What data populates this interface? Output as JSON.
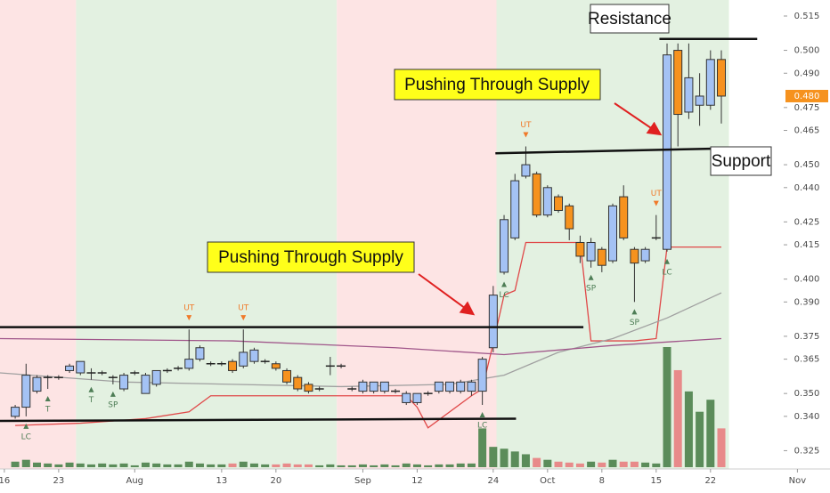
{
  "chart_data": {
    "type": "candlestick",
    "xlim": [
      -1.4,
      75
    ],
    "ylim": [
      0.317,
      0.522
    ],
    "xticks": [
      {
        "value": -1,
        "label": "16"
      },
      {
        "value": 4,
        "label": "23"
      },
      {
        "value": 11,
        "label": "Aug"
      },
      {
        "value": 19,
        "label": "13"
      },
      {
        "value": 24,
        "label": "20"
      },
      {
        "value": 32,
        "label": "Sep"
      },
      {
        "value": 37,
        "label": "12"
      },
      {
        "value": 44,
        "label": "24"
      },
      {
        "value": 49,
        "label": "Oct"
      },
      {
        "value": 54,
        "label": "8"
      },
      {
        "value": 59,
        "label": "15"
      },
      {
        "value": 64,
        "label": "22"
      },
      {
        "value": 72,
        "label": "Nov"
      }
    ],
    "yticks": [
      0.515,
      {
        "value": 0.5,
        "label": "0.500"
      },
      {
        "value": 0.49,
        "label": "0.490"
      },
      0.475,
      0.465,
      {
        "value": 0.45,
        "label": "0.450"
      },
      {
        "value": 0.44,
        "label": "0.440"
      },
      0.425,
      0.415,
      {
        "value": 0.4,
        "label": "0.400"
      },
      {
        "value": 0.39,
        "label": "0.390"
      },
      0.375,
      0.365,
      {
        "value": 0.35,
        "label": "0.350"
      },
      {
        "value": 0.34,
        "label": "0.340"
      },
      0.325
    ],
    "up_color": "#a4c2f4",
    "down_color": "#f6921e",
    "open": [
      0.34,
      0.344,
      0.351,
      0.357,
      0.357,
      0.36,
      0.359,
      0.359,
      0.359,
      0.357,
      0.352,
      0.359,
      0.35,
      0.354,
      0.36,
      0.361,
      0.361,
      0.365,
      0.363,
      0.363,
      0.364,
      0.362,
      0.364,
      0.364,
      0.363,
      0.36,
      0.357,
      0.354,
      0.352,
      0.362,
      0.362,
      0.352,
      0.351,
      0.351,
      0.351,
      0.351,
      0.346,
      0.346,
      0.35,
      0.351,
      0.351,
      0.351,
      0.351,
      0.351,
      0.37,
      0.403,
      0.418,
      0.445,
      0.446,
      0.428,
      0.436,
      0.432,
      0.416,
      0.408,
      0.413,
      0.408,
      0.436,
      0.413,
      0.408,
      0.418,
      0.413,
      0.5,
      0.473,
      0.476,
      0.476,
      0.496
    ],
    "high": [
      0.345,
      0.363,
      0.358,
      0.358,
      0.358,
      0.363,
      0.364,
      0.361,
      0.36,
      0.358,
      0.359,
      0.36,
      0.359,
      0.36,
      0.361,
      0.362,
      0.378,
      0.371,
      0.364,
      0.364,
      0.365,
      0.378,
      0.37,
      0.365,
      0.364,
      0.361,
      0.358,
      0.355,
      0.353,
      0.366,
      0.363,
      0.353,
      0.356,
      0.355,
      0.355,
      0.352,
      0.351,
      0.35,
      0.351,
      0.355,
      0.355,
      0.356,
      0.356,
      0.366,
      0.397,
      0.428,
      0.446,
      0.458,
      0.447,
      0.441,
      0.437,
      0.433,
      0.419,
      0.418,
      0.414,
      0.433,
      0.441,
      0.414,
      0.414,
      0.428,
      0.503,
      0.503,
      0.503,
      0.49,
      0.5,
      0.5
    ],
    "low": [
      0.339,
      0.34,
      0.35,
      0.352,
      0.356,
      0.359,
      0.358,
      0.356,
      0.358,
      0.354,
      0.351,
      0.358,
      0.35,
      0.353,
      0.359,
      0.36,
      0.36,
      0.364,
      0.362,
      0.362,
      0.359,
      0.361,
      0.363,
      0.363,
      0.36,
      0.354,
      0.351,
      0.35,
      0.351,
      0.358,
      0.361,
      0.351,
      0.35,
      0.35,
      0.35,
      0.35,
      0.345,
      0.345,
      0.349,
      0.35,
      0.35,
      0.35,
      0.349,
      0.345,
      0.368,
      0.402,
      0.417,
      0.444,
      0.427,
      0.427,
      0.429,
      0.417,
      0.407,
      0.405,
      0.403,
      0.407,
      0.417,
      0.39,
      0.407,
      0.417,
      0.412,
      0.458,
      0.47,
      0.467,
      0.474,
      0.468
    ],
    "close": [
      0.344,
      0.358,
      0.357,
      0.357,
      0.357,
      0.362,
      0.364,
      0.359,
      0.359,
      0.357,
      0.358,
      0.359,
      0.358,
      0.36,
      0.36,
      0.361,
      0.365,
      0.37,
      0.363,
      0.363,
      0.36,
      0.368,
      0.369,
      0.364,
      0.361,
      0.355,
      0.352,
      0.351,
      0.352,
      0.362,
      0.362,
      0.352,
      0.355,
      0.355,
      0.355,
      0.351,
      0.35,
      0.35,
      0.35,
      0.355,
      0.355,
      0.355,
      0.355,
      0.365,
      0.393,
      0.426,
      0.443,
      0.45,
      0.428,
      0.44,
      0.43,
      0.422,
      0.41,
      0.416,
      0.406,
      0.432,
      0.418,
      0.407,
      0.413,
      0.418,
      0.498,
      0.472,
      0.488,
      0.48,
      0.496,
      0.48
    ],
    "volume": [
      6,
      8,
      5,
      4,
      3,
      5,
      4,
      3,
      4,
      3,
      4,
      2,
      5,
      4,
      3,
      3,
      6,
      4,
      3,
      3,
      4,
      6,
      4,
      3,
      3,
      4,
      3,
      3,
      2,
      3,
      2,
      2,
      3,
      2,
      3,
      2,
      4,
      3,
      2,
      3,
      3,
      4,
      4,
      42,
      22,
      20,
      17,
      14,
      10,
      8,
      6,
      5,
      4,
      6,
      5,
      8,
      6,
      6,
      5,
      4,
      130,
      105,
      82,
      60,
      73,
      42
    ],
    "volume_up_color": "#5b8c5a",
    "volume_down_color": "#e88a8a",
    "zones": [
      {
        "from": -1.4,
        "to": 5.6,
        "color": "#fde4e4"
      },
      {
        "from": 5.6,
        "to": 29.6,
        "color": "#e3f1e1"
      },
      {
        "from": 29.6,
        "to": 44.3,
        "color": "#fde4e4"
      },
      {
        "from": 44.3,
        "to": 65.7,
        "color": "#e3f1e1"
      }
    ],
    "indicators": [
      {
        "color": "#e04848",
        "x": [
          0,
          6,
          12,
          16,
          18,
          36,
          37,
          38,
          42,
          43,
          44,
          45,
          46,
          47,
          52,
          53,
          57,
          59,
          60,
          65
        ],
        "values": [
          0.336,
          0.337,
          0.339,
          0.342,
          0.349,
          0.349,
          0.344,
          0.335,
          0.349,
          0.352,
          0.372,
          0.393,
          0.395,
          0.416,
          0.416,
          0.373,
          0.373,
          0.374,
          0.414,
          0.414
        ]
      },
      {
        "color": "#a0a0a0",
        "x": [
          -1.4,
          10,
          20,
          30,
          40,
          45,
          50,
          55,
          60,
          65
        ],
        "values": [
          0.359,
          0.355,
          0.354,
          0.353,
          0.354,
          0.358,
          0.368,
          0.374,
          0.383,
          0.394
        ]
      },
      {
        "color": "#a0568a",
        "x": [
          -1.4,
          20,
          35,
          45,
          55,
          65
        ],
        "values": [
          0.374,
          0.373,
          0.37,
          0.367,
          0.371,
          0.374
        ]
      }
    ],
    "trendlines": [
      {
        "x1": -1.4,
        "x2": 52.3,
        "y1": 0.379,
        "y2": 0.379
      },
      {
        "x1": -1.4,
        "x2": 46.1,
        "y1": 0.338,
        "y2": 0.339
      },
      {
        "x1": 44.2,
        "x2": 64,
        "y1": 0.455,
        "y2": 0.457
      },
      {
        "x1": 59.3,
        "x2": 68.3,
        "y1": 0.505,
        "y2": 0.505
      }
    ],
    "signals": [
      {
        "index": 1,
        "label": "LC"
      },
      {
        "index": 3,
        "label": "T"
      },
      {
        "index": 7,
        "label": "T"
      },
      {
        "index": 9,
        "label": "SP"
      },
      {
        "index": 16,
        "label": "UT"
      },
      {
        "index": 21,
        "label": "UT"
      },
      {
        "index": 43,
        "label": "LC"
      },
      {
        "index": 45,
        "label": "LC"
      },
      {
        "index": 47,
        "label": "UT"
      },
      {
        "index": 53,
        "label": "SP"
      },
      {
        "index": 57,
        "label": "SP"
      },
      {
        "index": 59,
        "label": "UT"
      },
      {
        "index": 60,
        "label": "LC"
      }
    ],
    "last_price": {
      "value": 0.48,
      "label": "0.480"
    },
    "annotations": {
      "resistance": "Resistance",
      "support": "Support",
      "push_upper": "Pushing Through Supply",
      "push_lower": "Pushing Through Supply"
    }
  }
}
